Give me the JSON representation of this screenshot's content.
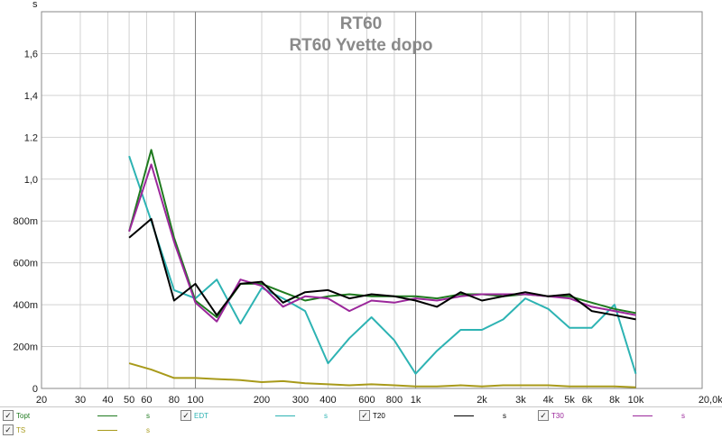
{
  "chart_data": {
    "type": "line",
    "title": "RT60",
    "subtitle": "RT60 Yvette dopo",
    "ylabel": "s",
    "xscale": "log",
    "xlim": [
      20,
      20000
    ],
    "ylim": [
      0,
      1.8
    ],
    "grid": true,
    "x_ticks": [
      {
        "v": 20,
        "label": "20"
      },
      {
        "v": 30,
        "label": "30"
      },
      {
        "v": 40,
        "label": "40"
      },
      {
        "v": 50,
        "label": "50"
      },
      {
        "v": 60,
        "label": "60"
      },
      {
        "v": 80,
        "label": "80"
      },
      {
        "v": 100,
        "label": "100"
      },
      {
        "v": 200,
        "label": "200"
      },
      {
        "v": 300,
        "label": "300"
      },
      {
        "v": 400,
        "label": "400"
      },
      {
        "v": 600,
        "label": "600"
      },
      {
        "v": 800,
        "label": "800"
      },
      {
        "v": 1000,
        "label": "1k"
      },
      {
        "v": 2000,
        "label": "2k"
      },
      {
        "v": 3000,
        "label": "3k"
      },
      {
        "v": 4000,
        "label": "4k"
      },
      {
        "v": 5000,
        "label": "5k"
      },
      {
        "v": 6000,
        "label": "6k"
      },
      {
        "v": 8000,
        "label": "8k"
      },
      {
        "v": 10000,
        "label": "10k"
      },
      {
        "v": 20000,
        "label": "20,0kHz"
      }
    ],
    "y_ticks": [
      {
        "v": 0,
        "label": "0"
      },
      {
        "v": 0.2,
        "label": "200m"
      },
      {
        "v": 0.4,
        "label": "400m"
      },
      {
        "v": 0.6,
        "label": "600m"
      },
      {
        "v": 0.8,
        "label": "800m"
      },
      {
        "v": 1.0,
        "label": "1,0"
      },
      {
        "v": 1.2,
        "label": "1.2"
      },
      {
        "v": 1.4,
        "label": "1,4"
      },
      {
        "v": 1.6,
        "label": "1,6"
      }
    ],
    "x": [
      50,
      63,
      80,
      100,
      125,
      160,
      200,
      250,
      315,
      400,
      500,
      630,
      800,
      1000,
      1250,
      1600,
      2000,
      2500,
      3150,
      4000,
      5000,
      6300,
      8000,
      10000
    ],
    "series": [
      {
        "name": "Topt",
        "color": "#1f7a1f",
        "values": [
          0.75,
          1.14,
          0.72,
          0.42,
          0.34,
          0.5,
          0.5,
          0.46,
          0.42,
          0.44,
          0.45,
          0.44,
          0.44,
          0.44,
          0.43,
          0.45,
          0.45,
          0.44,
          0.45,
          0.44,
          0.44,
          0.41,
          0.38,
          0.36
        ]
      },
      {
        "name": "EDT",
        "color": "#2db3b3",
        "values": [
          1.11,
          0.8,
          0.47,
          0.43,
          0.52,
          0.31,
          0.48,
          0.43,
          0.37,
          0.12,
          0.24,
          0.34,
          0.23,
          0.07,
          0.18,
          0.28,
          0.28,
          0.33,
          0.43,
          0.38,
          0.29,
          0.29,
          0.4,
          0.07
        ]
      },
      {
        "name": "T20",
        "color": "#000000",
        "values": [
          0.72,
          0.81,
          0.42,
          0.5,
          0.35,
          0.5,
          0.51,
          0.41,
          0.46,
          0.47,
          0.43,
          0.45,
          0.44,
          0.42,
          0.39,
          0.46,
          0.42,
          0.44,
          0.46,
          0.44,
          0.45,
          0.37,
          0.35,
          0.33
        ]
      },
      {
        "name": "T30",
        "color": "#9b279b",
        "values": [
          0.75,
          1.07,
          0.7,
          0.41,
          0.32,
          0.52,
          0.49,
          0.39,
          0.44,
          0.43,
          0.37,
          0.42,
          0.41,
          0.43,
          0.42,
          0.44,
          0.45,
          0.45,
          0.45,
          0.44,
          0.43,
          0.39,
          0.37,
          0.35
        ]
      },
      {
        "name": "TS",
        "color": "#a89a1a",
        "values": [
          0.12,
          0.09,
          0.05,
          0.05,
          0.045,
          0.04,
          0.03,
          0.035,
          0.025,
          0.02,
          0.015,
          0.02,
          0.015,
          0.01,
          0.01,
          0.015,
          0.01,
          0.015,
          0.015,
          0.015,
          0.01,
          0.01,
          0.01,
          0.005
        ]
      }
    ]
  },
  "legend": {
    "unit_label": "s",
    "items": [
      {
        "name": "Topt",
        "color": "#1f7a1f",
        "checked": "✓"
      },
      {
        "name": "EDT",
        "color": "#2db3b3",
        "checked": "✓"
      },
      {
        "name": "T20",
        "color": "#000000",
        "checked": "✓"
      },
      {
        "name": "T30",
        "color": "#9b279b",
        "checked": "✓"
      },
      {
        "name": "TS",
        "color": "#a89a1a",
        "checked": "✓"
      }
    ]
  }
}
